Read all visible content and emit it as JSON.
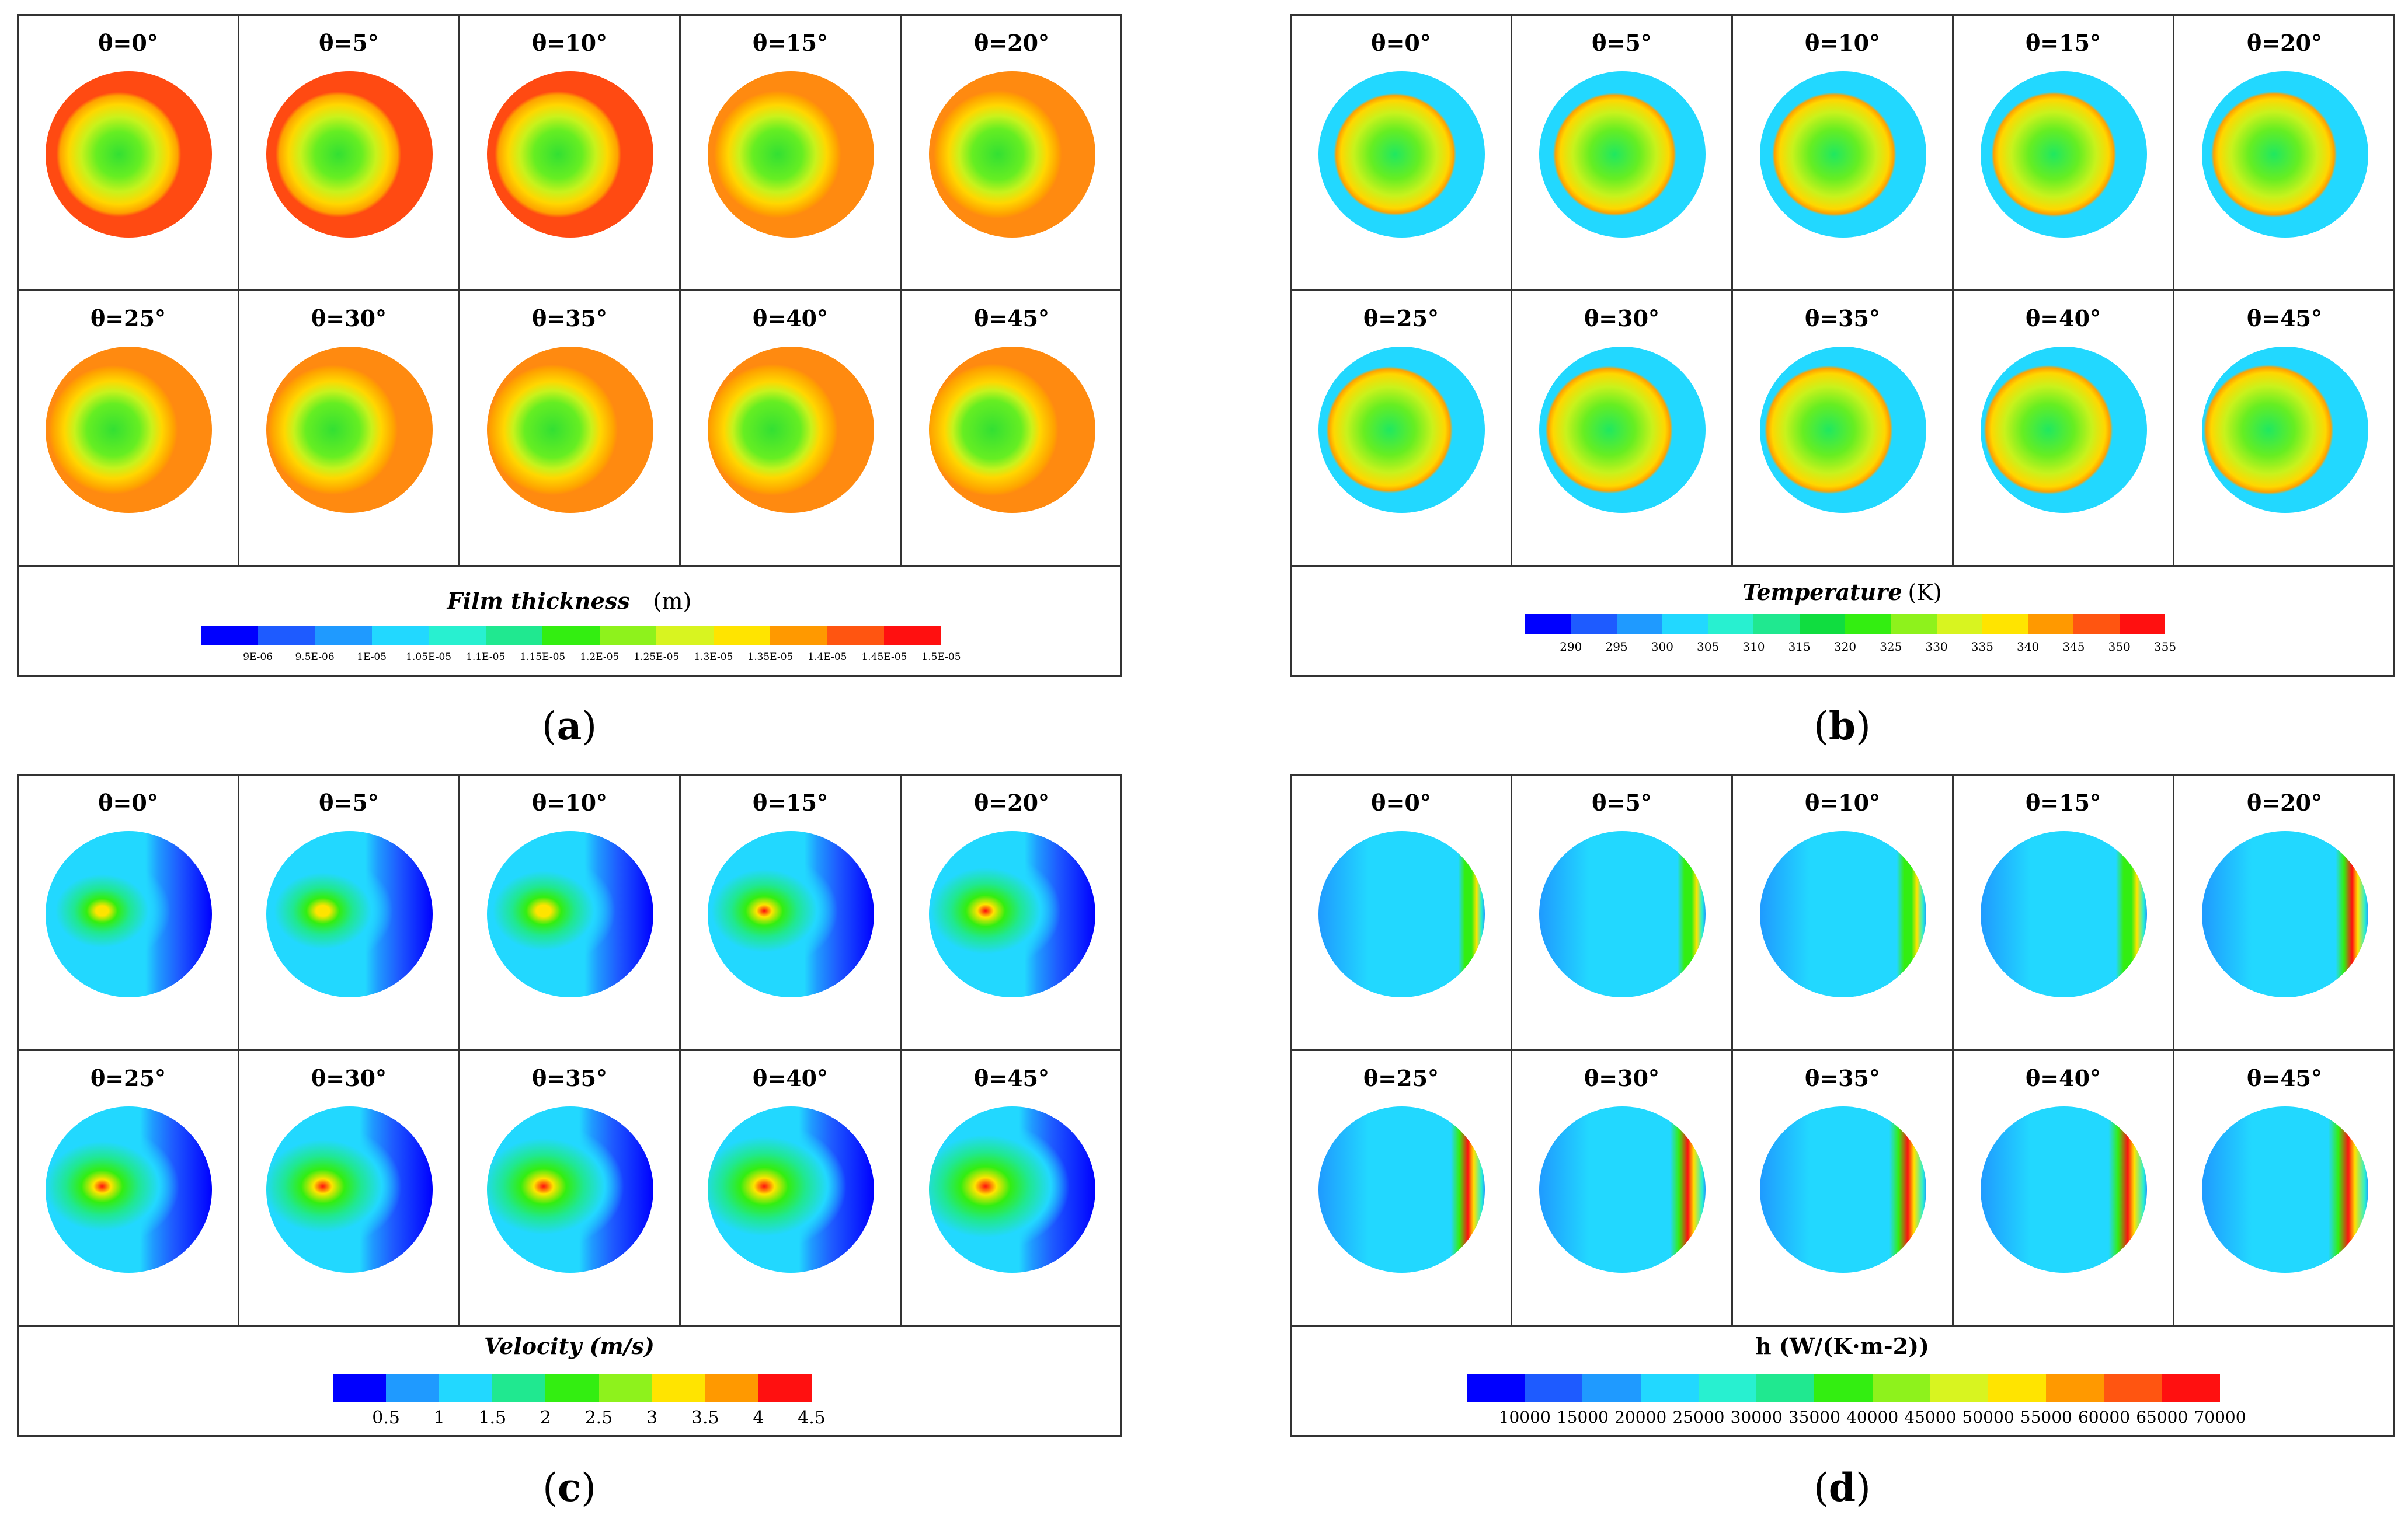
{
  "colormap": [
    "#0000ff",
    "#1e5bff",
    "#1f9aff",
    "#22d8ff",
    "#28f0d0",
    "#20e890",
    "#10dd40",
    "#33ee11",
    "#8ef21c",
    "#d8f420",
    "#ffe400",
    "#ff9900",
    "#ff5511",
    "#ff1010"
  ],
  "panels": [
    {
      "id": "a",
      "caption": "a",
      "angles": [
        "θ=0°",
        "θ=5°",
        "θ=10°",
        "θ=15°",
        "θ=20°",
        "θ=25°",
        "θ=30°",
        "θ=35°",
        "θ=40°",
        "θ=45°"
      ],
      "legend_title_italic": "Film thickness",
      "legend_unit": "(m)",
      "legend_ticks": [
        "9E-06",
        "9.5E-06",
        "1E-05",
        "1.05E-05",
        "1.1E-05",
        "1.15E-05",
        "1.2E-05",
        "1.25E-05",
        "1.3E-05",
        "1.35E-05",
        "1.4E-05",
        "1.45E-05",
        "1.5E-05"
      ],
      "legend_segments": 13
    },
    {
      "id": "b",
      "caption": "b",
      "angles": [
        "θ=0°",
        "θ=5°",
        "θ=10°",
        "θ=15°",
        "θ=20°",
        "θ=25°",
        "θ=30°",
        "θ=35°",
        "θ=40°",
        "θ=45°"
      ],
      "legend_title_italic": "Temperature",
      "legend_unit": "(K)",
      "legend_ticks": [
        "290",
        "295",
        "300",
        "305",
        "310",
        "315",
        "320",
        "325",
        "330",
        "335",
        "340",
        "345",
        "350",
        "355"
      ],
      "legend_segments": 14
    },
    {
      "id": "c",
      "caption": "c",
      "angles": [
        "θ=0°",
        "θ=5°",
        "θ=10°",
        "θ=15°",
        "θ=20°",
        "θ=25°",
        "θ=30°",
        "θ=35°",
        "θ=40°",
        "θ=45°"
      ],
      "legend_title_italic": "Velocity (m/s)",
      "legend_unit": "",
      "legend_ticks": [
        "0.5",
        "1",
        "1.5",
        "2",
        "2.5",
        "3",
        "3.5",
        "4",
        "4.5"
      ],
      "legend_segments": 9
    },
    {
      "id": "d",
      "caption": "d",
      "angles": [
        "θ=0°",
        "θ=5°",
        "θ=10°",
        "θ=15°",
        "θ=20°",
        "θ=25°",
        "θ=30°",
        "θ=35°",
        "θ=40°",
        "θ=45°"
      ],
      "legend_title_italic": "",
      "legend_unit": "h (W/(K·m-2))",
      "legend_ticks": [
        "10000",
        "15000",
        "20000",
        "25000",
        "30000",
        "35000",
        "40000",
        "45000",
        "50000",
        "55000",
        "60000",
        "65000",
        "70000"
      ],
      "legend_segments": 13
    }
  ]
}
